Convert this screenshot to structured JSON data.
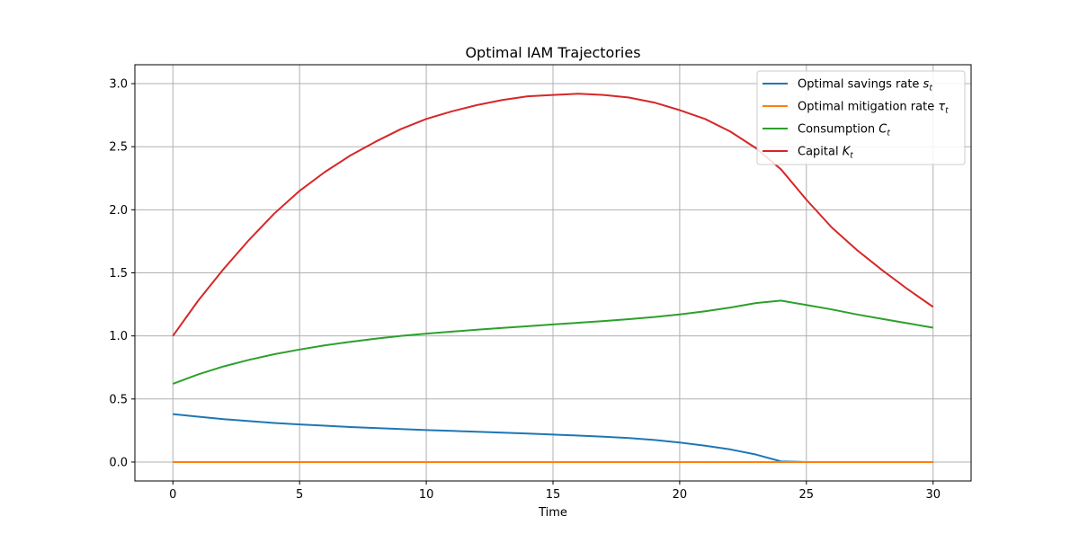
{
  "chart_data": {
    "type": "line",
    "title": "Optimal IAM Trajectories",
    "xlabel": "Time",
    "ylabel": "",
    "xlim": [
      -1.5,
      31.5
    ],
    "ylim": [
      -0.15,
      3.15
    ],
    "x_ticks": [
      0,
      5,
      10,
      15,
      20,
      25,
      30
    ],
    "y_ticks": [
      0.0,
      0.5,
      1.0,
      1.5,
      2.0,
      2.5,
      3.0
    ],
    "x_tick_labels": [
      "0",
      "5",
      "10",
      "15",
      "20",
      "25",
      "30"
    ],
    "y_tick_labels": [
      "0.0",
      "0.5",
      "1.0",
      "1.5",
      "2.0",
      "2.5",
      "3.0"
    ],
    "grid": true,
    "legend_position": "top-right",
    "x": [
      0,
      1,
      2,
      3,
      4,
      5,
      6,
      7,
      8,
      9,
      10,
      11,
      12,
      13,
      14,
      15,
      16,
      17,
      18,
      19,
      20,
      21,
      22,
      23,
      24,
      25,
      26,
      27,
      28,
      29,
      30
    ],
    "series": [
      {
        "name": "Optimal savings rate s_t",
        "legend_main": "Optimal savings rate ",
        "legend_var": "s",
        "legend_sub": "t",
        "color": "#1f77b4",
        "values": [
          0.38,
          0.36,
          0.34,
          0.325,
          0.31,
          0.298,
          0.288,
          0.278,
          0.27,
          0.262,
          0.254,
          0.247,
          0.24,
          0.233,
          0.226,
          0.218,
          0.21,
          0.201,
          0.19,
          0.175,
          0.155,
          0.13,
          0.1,
          0.06,
          0.005,
          0.0,
          0.0,
          0.0,
          0.0,
          0.0,
          0.0
        ]
      },
      {
        "name": "Optimal mitigation rate τ_t",
        "legend_main": "Optimal mitigation rate ",
        "legend_var": "τ",
        "legend_sub": "t",
        "color": "#ff7f0e",
        "values": [
          0,
          0,
          0,
          0,
          0,
          0,
          0,
          0,
          0,
          0,
          0,
          0,
          0,
          0,
          0,
          0,
          0,
          0,
          0,
          0,
          0,
          0,
          0,
          0,
          0,
          0,
          0,
          0,
          0,
          0,
          0
        ]
      },
      {
        "name": "Consumption C_t",
        "legend_main": "Consumption ",
        "legend_var": "C",
        "legend_sub": "t",
        "color": "#2ca02c",
        "values": [
          0.62,
          0.695,
          0.758,
          0.81,
          0.855,
          0.892,
          0.925,
          0.953,
          0.978,
          1.0,
          1.018,
          1.034,
          1.049,
          1.063,
          1.077,
          1.091,
          1.104,
          1.118,
          1.133,
          1.15,
          1.17,
          1.195,
          1.225,
          1.26,
          1.28,
          1.245,
          1.21,
          1.17,
          1.135,
          1.1,
          1.065
        ]
      },
      {
        "name": "Capital K_t",
        "legend_main": "Capital ",
        "legend_var": "K",
        "legend_sub": "t",
        "color": "#d62728",
        "values": [
          1.0,
          1.28,
          1.53,
          1.76,
          1.97,
          2.15,
          2.3,
          2.43,
          2.54,
          2.64,
          2.72,
          2.78,
          2.83,
          2.87,
          2.9,
          2.91,
          2.92,
          2.91,
          2.89,
          2.85,
          2.79,
          2.72,
          2.62,
          2.49,
          2.32,
          2.08,
          1.86,
          1.68,
          1.52,
          1.37,
          1.23
        ]
      }
    ]
  }
}
